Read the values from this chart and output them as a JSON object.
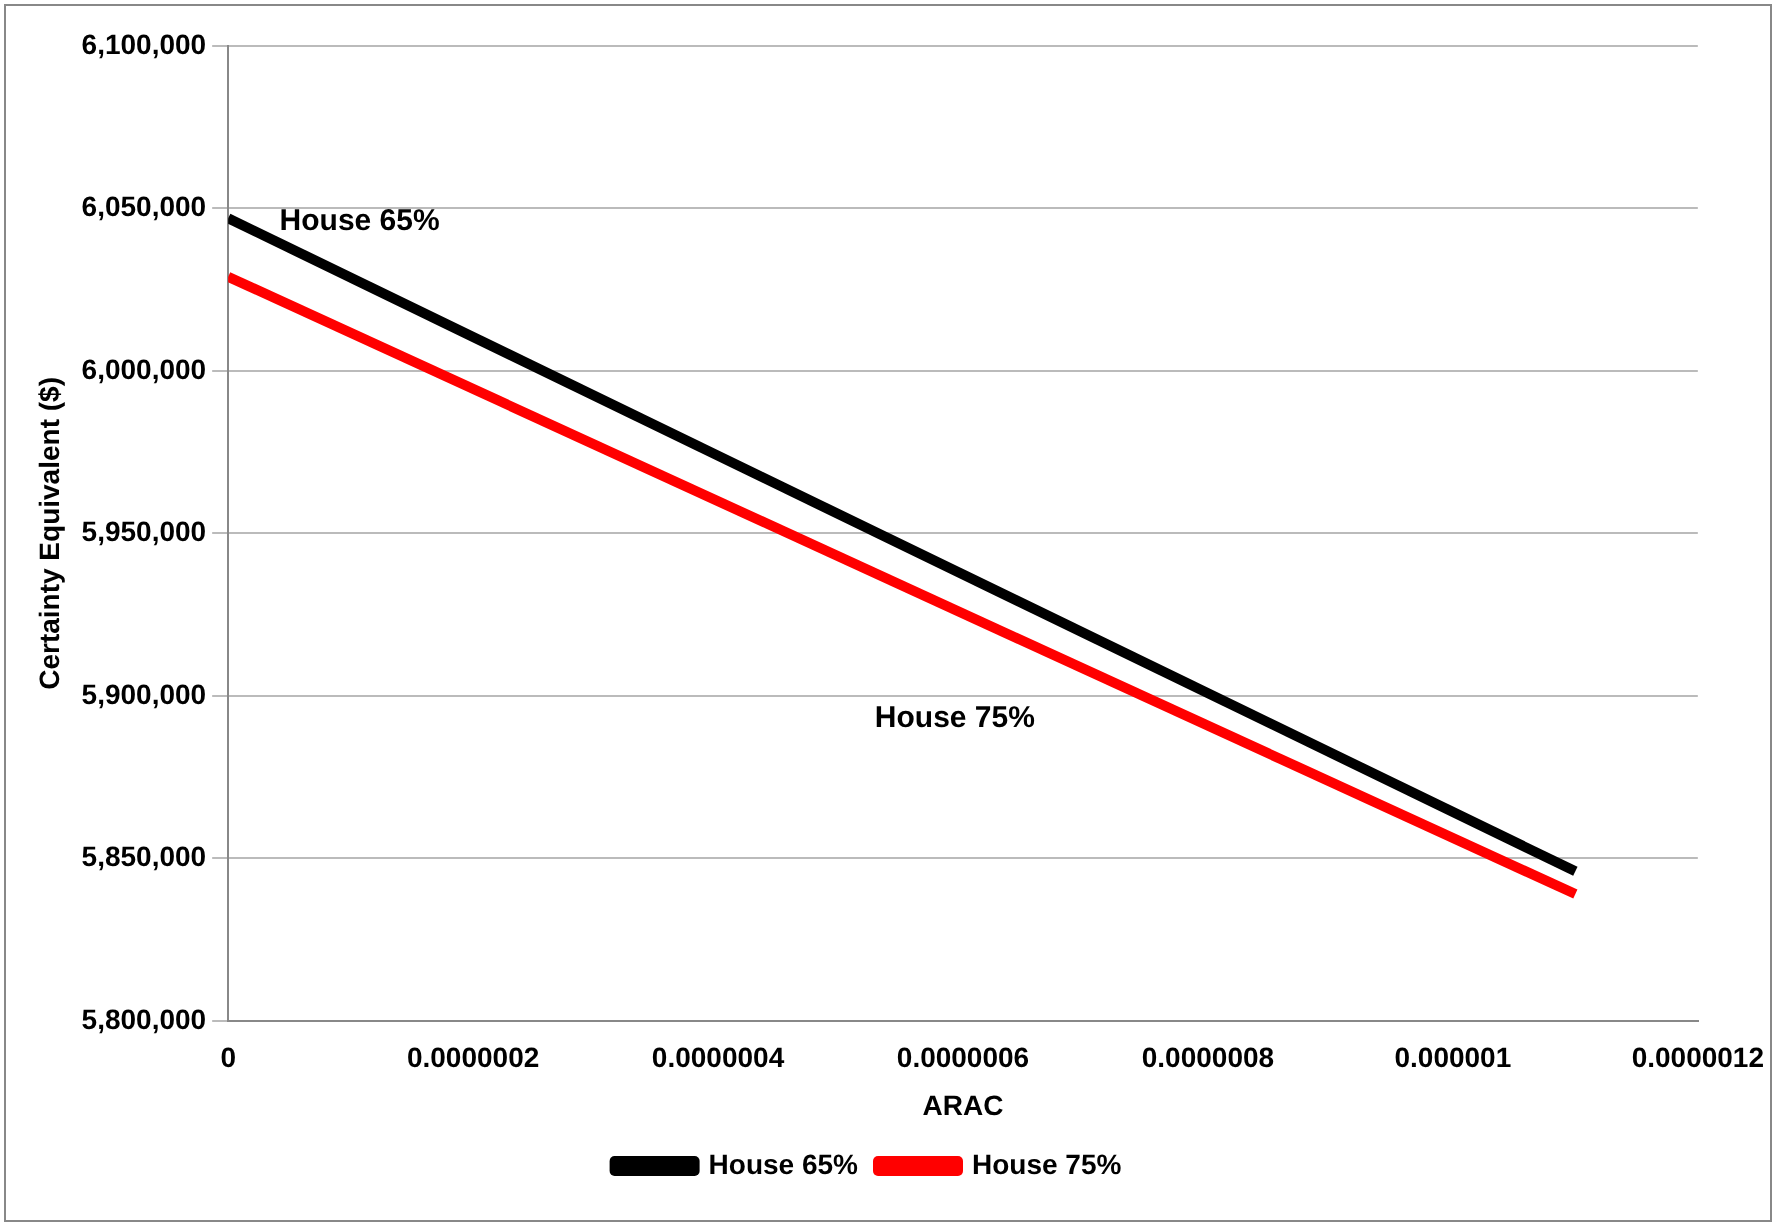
{
  "chart_data": {
    "type": "line",
    "xlabel": "ARAC",
    "ylabel": "Certainty Equivalent ($)",
    "xlim": [
      0,
      1.2e-06
    ],
    "xticks": [
      {
        "value": 0,
        "label": "0"
      },
      {
        "value": 2e-07,
        "label": "0.0000002"
      },
      {
        "value": 4e-07,
        "label": "0.0000004"
      },
      {
        "value": 6e-07,
        "label": "0.0000006"
      },
      {
        "value": 8e-07,
        "label": "0.0000008"
      },
      {
        "value": 1e-06,
        "label": "0.000001"
      },
      {
        "value": 1.2e-06,
        "label": "0.0000012"
      }
    ],
    "ylim": [
      5800000,
      6100000
    ],
    "yticks": [
      {
        "value": 5800000,
        "label": "5,800,000"
      },
      {
        "value": 5850000,
        "label": "5,850,000"
      },
      {
        "value": 5900000,
        "label": "5,900,000"
      },
      {
        "value": 5950000,
        "label": "5,950,000"
      },
      {
        "value": 6000000,
        "label": "6,000,000"
      },
      {
        "value": 6050000,
        "label": "6,050,000"
      },
      {
        "value": 6100000,
        "label": "6,100,000"
      }
    ],
    "x": [
      0,
      1.1e-06
    ],
    "series": [
      {
        "name": "House 65%",
        "color": "#000000",
        "values": [
          6047000,
          5846000
        ]
      },
      {
        "name": "House 75%",
        "color": "#ff0000",
        "values": [
          6029000,
          5839000
        ]
      }
    ],
    "annotations": [
      "House 65%",
      "House 75%"
    ],
    "grid": "y",
    "legend": "bottom",
    "marker": "none",
    "line_style": "solid"
  }
}
